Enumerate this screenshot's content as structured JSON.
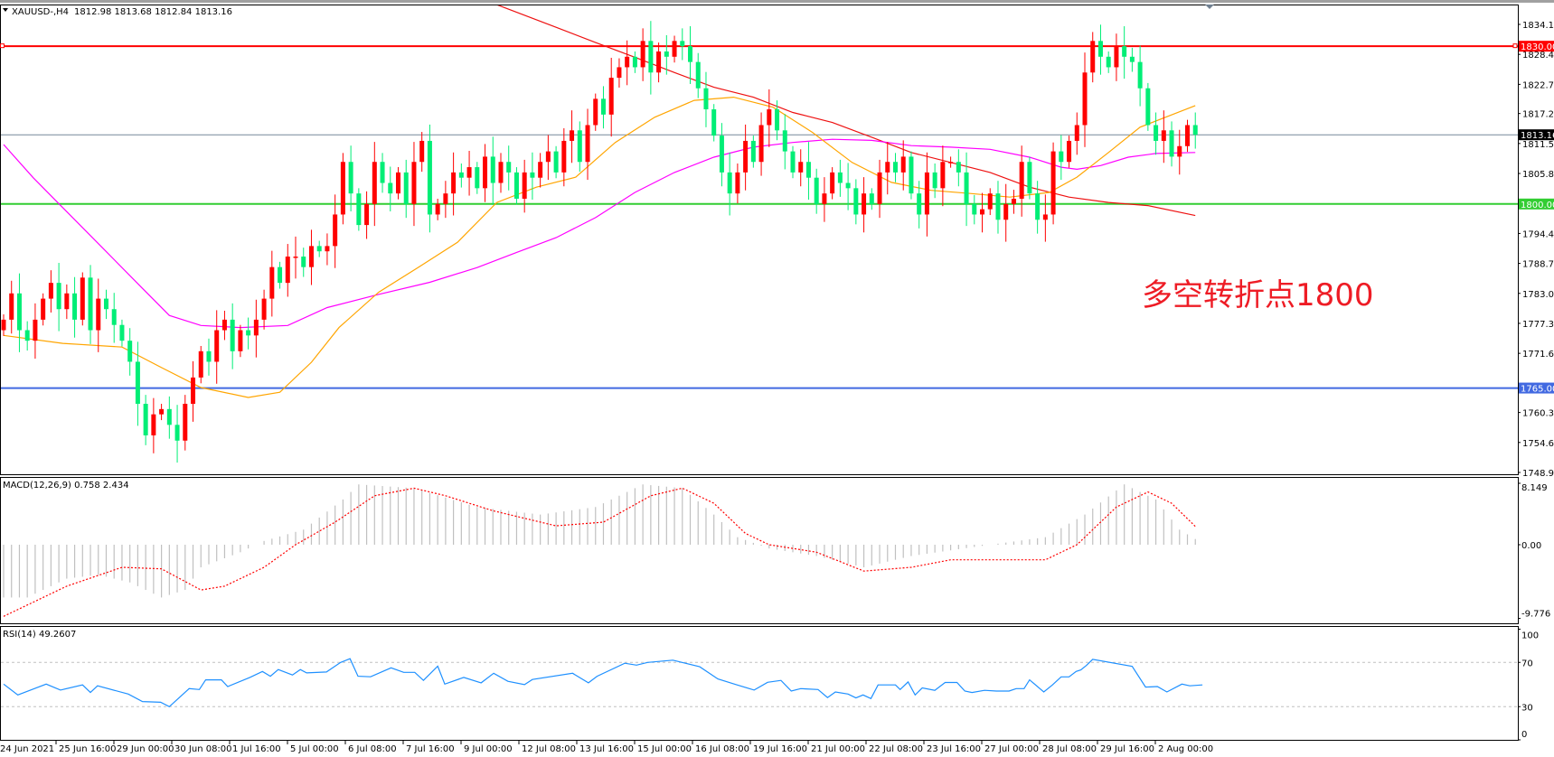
{
  "header": {
    "symbol": "XAUUSD-,H4",
    "ohlc": "1812.98 1813.68 1812.84 1813.16"
  },
  "annotation": "多空转折点1800",
  "colors": {
    "bull": "#ff0000",
    "bear": "#00ee76",
    "ma_fast": "#ffa500",
    "ma_mid": "#ff00ff",
    "ma_slow": "#ee1111",
    "macd_hist": "#c0c0c0",
    "macd_signal": "#ff0000",
    "rsi": "#1e90ff"
  },
  "levels": [
    {
      "price": 1830.0,
      "label": "1830.00",
      "color": "#ff0000"
    },
    {
      "price": 1800.0,
      "label": "1800.00",
      "color": "#32cd32"
    },
    {
      "price": 1765.0,
      "label": "1765.00",
      "color": "#4169e1"
    }
  ],
  "current_price": {
    "price": 1813.16,
    "label": "1813.16",
    "line_color": "#778899"
  },
  "price_axis": [
    "1834.15",
    "1828.45",
    "1822.75",
    "1817.20",
    "1811.50",
    "1805.80",
    "1794.40",
    "1788.70",
    "1783.00",
    "1777.30",
    "1771.60",
    "1760.35",
    "1754.65",
    "1748.95"
  ],
  "price_range": [
    1748.95,
    1834.15
  ],
  "time_axis": [
    "24 Jun 2021",
    "25 Jun 16:00",
    "29 Jun 00:00",
    "30 Jun 08:00",
    "1 Jul 16:00",
    "5 Jul 00:00",
    "6 Jul 08:00",
    "7 Jul 16:00",
    "9 Jul 00:00",
    "12 Jul 08:00",
    "13 Jul 16:00",
    "15 Jul 00:00",
    "16 Jul 08:00",
    "19 Jul 16:00",
    "21 Jul 00:00",
    "22 Jul 08:00",
    "23 Jul 16:00",
    "27 Jul 00:00",
    "28 Jul 08:00",
    "29 Jul 16:00",
    "2 Aug 00:00"
  ],
  "chart_data": {
    "type": "candlestick",
    "closes": [
      1778,
      1783,
      1776,
      1774,
      1778,
      1782,
      1785,
      1780,
      1783,
      1778,
      1786,
      1776,
      1782,
      1780,
      1777,
      1774,
      1770,
      1762,
      1756,
      1760,
      1761,
      1758,
      1755,
      1762,
      1767,
      1772,
      1770,
      1776,
      1778,
      1772,
      1776,
      1775,
      1778,
      1782,
      1788,
      1785,
      1790,
      1790,
      1788,
      1792,
      1791,
      1792,
      1798,
      1808,
      1802,
      1796,
      1800,
      1808,
      1804,
      1802,
      1806,
      1800,
      1808,
      1812,
      1798,
      1800,
      1802,
      1806,
      1805,
      1807,
      1803,
      1809,
      1804,
      1808,
      1806,
      1801,
      1806,
      1805,
      1808,
      1810,
      1806,
      1812,
      1814,
      1808,
      1815,
      1820,
      1817,
      1824,
      1826,
      1828,
      1826,
      1831,
      1825,
      1829,
      1828,
      1831,
      1830,
      1827,
      1822,
      1818,
      1813,
      1806,
      1802,
      1806,
      1812,
      1808,
      1815,
      1818,
      1814,
      1810,
      1806,
      1808,
      1805,
      1800,
      1802,
      1806,
      1804,
      1803,
      1798,
      1802,
      1800,
      1806,
      1808,
      1806,
      1809,
      1802,
      1798,
      1806,
      1803,
      1808,
      1808,
      1806,
      1800,
      1798,
      1799,
      1802,
      1797,
      1800,
      1801,
      1808,
      1802,
      1797,
      1798,
      1810,
      1808,
      1812,
      1815,
      1825,
      1831,
      1828,
      1826,
      1830,
      1828,
      1827,
      1822,
      1815,
      1812,
      1814,
      1809,
      1811,
      1815,
      1813.16
    ],
    "ma_fast": [
      [
        0,
        1775
      ],
      [
        7.5,
        1773.5
      ],
      [
        15,
        1772.8
      ],
      [
        20,
        1768.9
      ],
      [
        25,
        1765.1
      ],
      [
        31,
        1763.2
      ],
      [
        35,
        1764.2
      ],
      [
        39,
        1769.9
      ],
      [
        42.5,
        1776.5
      ],
      [
        47.5,
        1783.2
      ],
      [
        52.5,
        1787.9
      ],
      [
        57.5,
        1792.7
      ],
      [
        62.5,
        1800.3
      ],
      [
        67.5,
        1803.2
      ],
      [
        72.5,
        1805.1
      ],
      [
        77.5,
        1811.7
      ],
      [
        82.5,
        1816.5
      ],
      [
        87.5,
        1819.7
      ],
      [
        92.5,
        1820.3
      ],
      [
        97.5,
        1818.4
      ],
      [
        102.5,
        1813.6
      ],
      [
        107.5,
        1807.9
      ],
      [
        112.5,
        1804.1
      ],
      [
        117.5,
        1802.6
      ],
      [
        122.5,
        1802
      ],
      [
        127.5,
        1801.3
      ],
      [
        132.5,
        1802.2
      ],
      [
        136,
        1805.1
      ],
      [
        140,
        1809.8
      ],
      [
        144,
        1814.6
      ],
      [
        151,
        1818.7
      ]
    ],
    "ma_mid": [
      [
        0,
        1811.3
      ],
      [
        3.75,
        1805
      ],
      [
        7.5,
        1799.3
      ],
      [
        12.5,
        1791.7
      ],
      [
        17.5,
        1784.1
      ],
      [
        21,
        1778.8
      ],
      [
        25,
        1776.9
      ],
      [
        30,
        1776.5
      ],
      [
        36,
        1776.9
      ],
      [
        41,
        1780.3
      ],
      [
        47.5,
        1782.8
      ],
      [
        54,
        1785.1
      ],
      [
        60,
        1787.9
      ],
      [
        65,
        1790.8
      ],
      [
        70,
        1793.6
      ],
      [
        75,
        1797.4
      ],
      [
        80,
        1802.2
      ],
      [
        85,
        1806
      ],
      [
        90,
        1808.9
      ],
      [
        95,
        1810.8
      ],
      [
        100,
        1811.7
      ],
      [
        105,
        1812.3
      ],
      [
        110,
        1812.1
      ],
      [
        115,
        1811.1
      ],
      [
        120,
        1810.8
      ],
      [
        125,
        1810.4
      ],
      [
        130,
        1808.9
      ],
      [
        134,
        1807
      ],
      [
        136,
        1806.6
      ],
      [
        139,
        1807.3
      ],
      [
        142.5,
        1808.9
      ],
      [
        146,
        1809.6
      ],
      [
        151,
        1809.8
      ]
    ],
    "ma_slow": [
      [
        56,
        1838.3
      ],
      [
        62.5,
        1837.9
      ],
      [
        70,
        1833.6
      ],
      [
        75,
        1830.7
      ],
      [
        80,
        1827.9
      ],
      [
        85,
        1825
      ],
      [
        90,
        1822.2
      ],
      [
        95,
        1820.3
      ],
      [
        100,
        1817.4
      ],
      [
        105,
        1815.5
      ],
      [
        110,
        1812.7
      ],
      [
        115,
        1809.8
      ],
      [
        120,
        1807.9
      ],
      [
        125,
        1806
      ],
      [
        130,
        1803.2
      ],
      [
        135,
        1801.3
      ],
      [
        140,
        1800.3
      ],
      [
        145,
        1799.7
      ],
      [
        151,
        1797.8
      ]
    ]
  },
  "macd": {
    "label": "MACD(12,26,9) 0.758 2.434",
    "axis": [
      "8.149",
      "0.00",
      "-9.776"
    ],
    "range": [
      -9.776,
      8.149
    ],
    "main": [
      [
        0,
        -7
      ],
      [
        3,
        -7
      ],
      [
        8,
        -4.5
      ],
      [
        12,
        -4
      ],
      [
        16,
        -5
      ],
      [
        20,
        -7
      ],
      [
        23,
        -6
      ],
      [
        25,
        -3
      ],
      [
        30,
        -1
      ],
      [
        33,
        0.5
      ],
      [
        38,
        2
      ],
      [
        43,
        6
      ],
      [
        45,
        8
      ],
      [
        52,
        7.5
      ],
      [
        60,
        5
      ],
      [
        68,
        4
      ],
      [
        75,
        5
      ],
      [
        81,
        8
      ],
      [
        86,
        7.5
      ],
      [
        90,
        4
      ],
      [
        93,
        1
      ],
      [
        97,
        -0.5
      ],
      [
        103,
        -1.5
      ],
      [
        109,
        -3
      ],
      [
        115,
        -1.5
      ],
      [
        125,
        0
      ],
      [
        132,
        1
      ],
      [
        137,
        4
      ],
      [
        142,
        8
      ],
      [
        146,
        6
      ],
      [
        149,
        2
      ],
      [
        151,
        0.758
      ]
    ],
    "signal": [
      [
        0,
        -9.5
      ],
      [
        8,
        -5.5
      ],
      [
        15,
        -3
      ],
      [
        20,
        -3.2
      ],
      [
        25,
        -6
      ],
      [
        28,
        -5.5
      ],
      [
        33,
        -3
      ],
      [
        37,
        0
      ],
      [
        42,
        3
      ],
      [
        47,
        6.5
      ],
      [
        52,
        7.5
      ],
      [
        56,
        6.5
      ],
      [
        62,
        4.5
      ],
      [
        70,
        2.5
      ],
      [
        76,
        3
      ],
      [
        82,
        6.5
      ],
      [
        86,
        7.5
      ],
      [
        90,
        5.5
      ],
      [
        94,
        1.5
      ],
      [
        97,
        0
      ],
      [
        103,
        -1
      ],
      [
        109,
        -3.5
      ],
      [
        115,
        -3
      ],
      [
        120,
        -2
      ],
      [
        128,
        -2
      ],
      [
        132,
        -2
      ],
      [
        136,
        0
      ],
      [
        141,
        5
      ],
      [
        145,
        7
      ],
      [
        148,
        5.5
      ],
      [
        151,
        2.434
      ]
    ]
  },
  "rsi": {
    "label": "RSI(14) 49.2607",
    "axis": [
      "100",
      "70",
      "30",
      "0"
    ],
    "levels": [
      70,
      30
    ],
    "values": [
      [
        0,
        50.4
      ],
      [
        1.8,
        40.6
      ],
      [
        5.4,
        50.4
      ],
      [
        7.2,
        45
      ],
      [
        10,
        49.6
      ],
      [
        11,
        42.8
      ],
      [
        11.9,
        48.8
      ],
      [
        15.8,
        41.4
      ],
      [
        17.6,
        34.6
      ],
      [
        19.9,
        34
      ],
      [
        21,
        30
      ],
      [
        23.5,
        46.3
      ],
      [
        24.8,
        45.5
      ],
      [
        25.6,
        54.2
      ],
      [
        27.6,
        54.2
      ],
      [
        28.4,
        48.2
      ],
      [
        31.2,
        56.4
      ],
      [
        32.8,
        61.8
      ],
      [
        33.8,
        57.5
      ],
      [
        34.8,
        63.5
      ],
      [
        36.6,
        58.6
      ],
      [
        37.6,
        63.5
      ],
      [
        38.4,
        60.5
      ],
      [
        40.9,
        61.3
      ],
      [
        42.7,
        70
      ],
      [
        43.9,
        73.3
      ],
      [
        44.9,
        57.5
      ],
      [
        46.5,
        57
      ],
      [
        49.1,
        65.1
      ],
      [
        50.7,
        61
      ],
      [
        52.1,
        61
      ],
      [
        53.2,
        53.7
      ],
      [
        55,
        66.5
      ],
      [
        55.9,
        50.4
      ],
      [
        58.3,
        56.4
      ],
      [
        60.5,
        51.5
      ],
      [
        62.1,
        60.2
      ],
      [
        63.9,
        52.9
      ],
      [
        66,
        49.9
      ],
      [
        67,
        54.5
      ],
      [
        72.1,
        60.2
      ],
      [
        74.1,
        51.5
      ],
      [
        75.2,
        57.5
      ],
      [
        78.7,
        69.2
      ],
      [
        80.2,
        67.5
      ],
      [
        81.6,
        70
      ],
      [
        84.8,
        72
      ],
      [
        88.2,
        66
      ],
      [
        90.5,
        55
      ],
      [
        92.8,
        50
      ],
      [
        95.1,
        45
      ],
      [
        96.8,
        52
      ],
      [
        98.5,
        53.7
      ],
      [
        99.8,
        44.1
      ],
      [
        101,
        46.3
      ],
      [
        103.2,
        45.5
      ],
      [
        104.4,
        38.2
      ],
      [
        105.4,
        43.3
      ],
      [
        107,
        41.4
      ],
      [
        108,
        37.9
      ],
      [
        108.9,
        40.6
      ],
      [
        109.9,
        37.3
      ],
      [
        110.8,
        49.6
      ],
      [
        113,
        49.6
      ],
      [
        113.6,
        45.5
      ],
      [
        114.6,
        52.3
      ],
      [
        115.5,
        40.6
      ],
      [
        116.4,
        46.9
      ],
      [
        118,
        44.7
      ],
      [
        119.3,
        51.8
      ],
      [
        120.8,
        51.8
      ],
      [
        121.8,
        44.1
      ],
      [
        122.7,
        42.8
      ],
      [
        124.3,
        44.7
      ],
      [
        125.8,
        44.1
      ],
      [
        127.4,
        44.1
      ],
      [
        128.3,
        46.3
      ],
      [
        129.3,
        46.3
      ],
      [
        130,
        54.2
      ],
      [
        131.8,
        43.3
      ],
      [
        132.9,
        49.6
      ],
      [
        134,
        56.9
      ],
      [
        135,
        56.9
      ],
      [
        135.9,
        61.8
      ],
      [
        136.5,
        63.2
      ],
      [
        137.2,
        67.3
      ],
      [
        138,
        72.7
      ],
      [
        143,
        66.4
      ],
      [
        144.7,
        47.7
      ],
      [
        146.2,
        48.2
      ],
      [
        147.4,
        43.3
      ],
      [
        149.3,
        50.4
      ],
      [
        150.3,
        48.8
      ],
      [
        151.9,
        49.6
      ]
    ]
  }
}
